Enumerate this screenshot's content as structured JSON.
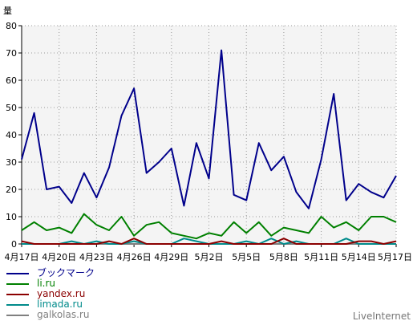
{
  "brand": "LiveInternet",
  "chart_data": {
    "type": "line",
    "ylabel": "量",
    "ylim": [
      0,
      80
    ],
    "yticks": [
      "0",
      "10",
      "20",
      "30",
      "40",
      "50",
      "60",
      "70",
      "80"
    ],
    "grid": true,
    "legend_position": "bottom-left",
    "x": [
      "4月17日",
      "4月18日",
      "4月19日",
      "4月20日",
      "4月21日",
      "4月22日",
      "4月23日",
      "4月24日",
      "4月25日",
      "4月26日",
      "4月27日",
      "4月28日",
      "4月29日",
      "4月30日",
      "5月1日",
      "5月2日",
      "5月3日",
      "5月4日",
      "5月5日",
      "5月6日",
      "5月7日",
      "5月8日",
      "5月9日",
      "5月10日",
      "5月11日",
      "5月12日",
      "5月13日",
      "5月14日",
      "5月15日",
      "5月16日",
      "5月17日"
    ],
    "xticks": [
      "4月17日",
      "4月20日",
      "4月23日",
      "4月26日",
      "4月29日",
      "5月2日",
      "5月5日",
      "5月8日",
      "5月11日",
      "5月14日",
      "5月17日"
    ],
    "series": [
      {
        "name": "ブックマーク",
        "color": "#00008b",
        "values": [
          31,
          48,
          20,
          21,
          15,
          26,
          17,
          28,
          47,
          57,
          26,
          30,
          35,
          14,
          37,
          24,
          71,
          18,
          16,
          37,
          27,
          32,
          19,
          13,
          31,
          55,
          16,
          22,
          19,
          17,
          25
        ]
      },
      {
        "name": "li.ru",
        "color": "#008000",
        "values": [
          5,
          8,
          5,
          6,
          4,
          11,
          7,
          5,
          10,
          3,
          7,
          8,
          4,
          3,
          2,
          4,
          3,
          8,
          4,
          8,
          3,
          6,
          5,
          4,
          10,
          6,
          8,
          5,
          10,
          10,
          8
        ]
      },
      {
        "name": "yandex.ru",
        "color": "#8b0000",
        "values": [
          1,
          0,
          0,
          0,
          0,
          0,
          0,
          1,
          0,
          2,
          0,
          0,
          0,
          0,
          0,
          0,
          1,
          0,
          0,
          0,
          0,
          2,
          0,
          0,
          0,
          0,
          0,
          1,
          1,
          0,
          1
        ]
      },
      {
        "name": "limada.ru",
        "color": "#008b8b",
        "values": [
          0,
          0,
          0,
          0,
          1,
          0,
          1,
          0,
          0,
          1,
          0,
          0,
          0,
          2,
          1,
          0,
          0,
          0,
          1,
          0,
          2,
          0,
          1,
          0,
          0,
          0,
          2,
          0,
          0,
          0,
          0
        ]
      },
      {
        "name": "galkolas.ru",
        "color": "#808080",
        "values": [
          0,
          0,
          0,
          0,
          0,
          0,
          0,
          0,
          0,
          0,
          0,
          0,
          0,
          0,
          0,
          0,
          0,
          0,
          0,
          0,
          0,
          0,
          0,
          0,
          0,
          0,
          0,
          0,
          0,
          0,
          0
        ]
      }
    ]
  }
}
